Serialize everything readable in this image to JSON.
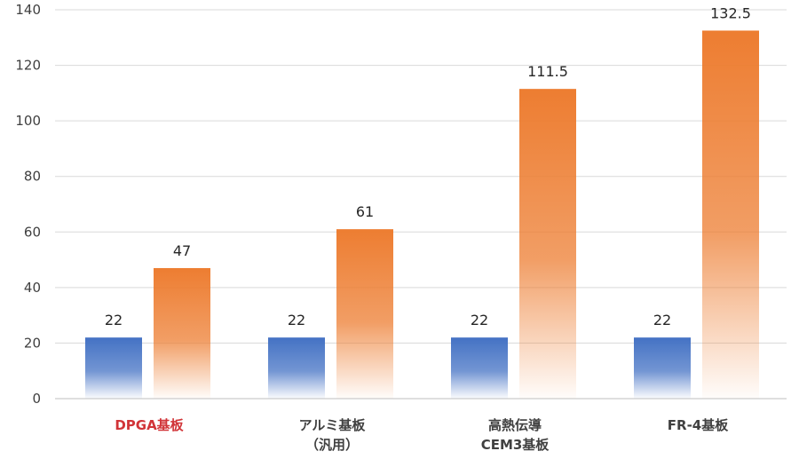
{
  "chart_data": {
    "type": "bar",
    "categories": [
      [
        "DPGA基板"
      ],
      [
        "アルミ基板",
        "（汎用）"
      ],
      [
        "高熱伝導",
        "CEM3基板"
      ],
      [
        "FR-4基板"
      ]
    ],
    "category_colors": [
      "#d13438",
      "#404040",
      "#404040",
      "#404040"
    ],
    "series": [
      {
        "values": [
          22,
          22,
          22,
          22
        ],
        "color": "#4472c4"
      },
      {
        "values": [
          47,
          61,
          111.5,
          132.5
        ],
        "color": "#ed7d31"
      }
    ],
    "ylim": [
      0,
      140
    ],
    "yticks": [
      0,
      20,
      40,
      60,
      80,
      100,
      120,
      140
    ],
    "grid": true,
    "legend": "none"
  }
}
